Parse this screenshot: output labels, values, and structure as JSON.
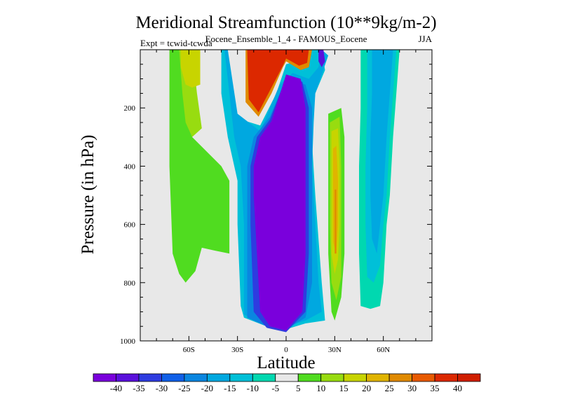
{
  "chart_data": {
    "type": "contour",
    "title": "Meridional Streamfunction (10**9kg/m-2)",
    "subtitle": "Eocene_Ensemble_1_4 - FAMOUS_Eocene",
    "left_label": "Expt = tcwid-tcwda",
    "right_label": "JJA",
    "xlabel": "Latitude",
    "ylabel": "Pressure (in hPa)",
    "xlim": [
      -90,
      90
    ],
    "ylim": [
      1000,
      0
    ],
    "x_ticks": [
      {
        "value": -60,
        "label": "60S"
      },
      {
        "value": -30,
        "label": "30S"
      },
      {
        "value": 0,
        "label": "0"
      },
      {
        "value": 30,
        "label": "30N"
      },
      {
        "value": 60,
        "label": "60N"
      }
    ],
    "y_ticks": [
      {
        "value": 200,
        "label": "200"
      },
      {
        "value": 400,
        "label": "400"
      },
      {
        "value": 600,
        "label": "600"
      },
      {
        "value": 800,
        "label": "800"
      },
      {
        "value": 1000,
        "label": "1000"
      }
    ],
    "missing_color": "#e8e8e8",
    "colorbar": {
      "labels": [
        "-40",
        "-35",
        "-30",
        "-25",
        "-20",
        "-15",
        "-10",
        "-5",
        "5",
        "10",
        "15",
        "20",
        "25",
        "30",
        "35",
        "40"
      ],
      "colors": [
        "#7a00dc",
        "#5a10dc",
        "#2e3ce0",
        "#1060e8",
        "#0a86e0",
        "#00a8e0",
        "#00c0d8",
        "#00d8b0",
        "#e8e8e8",
        "#50dc20",
        "#98dc10",
        "#c8d400",
        "#e0b400",
        "#e08a00",
        "#e85a00",
        "#dc2800",
        "#d01e00"
      ]
    },
    "regions": [
      {
        "name": "SH polar cell",
        "color": "#50dc20",
        "points": [
          [
            -72,
            0
          ],
          [
            -66,
            0
          ],
          [
            -58,
            300
          ],
          [
            -40,
            400
          ],
          [
            -35,
            450
          ],
          [
            -35,
            700
          ],
          [
            -44,
            690
          ],
          [
            -52,
            680
          ],
          [
            -56,
            760
          ],
          [
            -62,
            800
          ],
          [
            -66,
            770
          ],
          [
            -70,
            700
          ],
          [
            -72,
            400
          ]
        ]
      },
      {
        "name": "SH polar cell core",
        "color": "#98dc10",
        "points": [
          [
            -66,
            0
          ],
          [
            -58,
            0
          ],
          [
            -55,
            150
          ],
          [
            -52,
            270
          ],
          [
            -58,
            300
          ],
          [
            -62,
            250
          ],
          [
            -64,
            150
          ]
        ]
      },
      {
        "name": "SH polar cell center",
        "color": "#c8d400",
        "points": [
          [
            -65,
            0
          ],
          [
            -53,
            0
          ],
          [
            -53,
            120
          ],
          [
            -58,
            130
          ],
          [
            -62,
            120
          ],
          [
            -65,
            60
          ]
        ]
      },
      {
        "name": "Ferrel cell SH outer",
        "color": "#00c0d8",
        "points": [
          [
            -40,
            0
          ],
          [
            -38,
            0
          ],
          [
            -32,
            200
          ],
          [
            -28,
            240
          ],
          [
            -16,
            260
          ],
          [
            -6,
            150
          ],
          [
            0,
            50
          ],
          [
            6,
            40
          ],
          [
            12,
            50
          ],
          [
            14,
            0
          ],
          [
            22,
            0
          ],
          [
            24,
            70
          ],
          [
            18,
            150
          ],
          [
            17,
            200
          ],
          [
            16,
            320
          ],
          [
            18,
            500
          ],
          [
            22,
            800
          ],
          [
            24,
            930
          ],
          [
            12,
            940
          ],
          [
            0,
            960
          ],
          [
            -12,
            950
          ],
          [
            -26,
            920
          ],
          [
            -28,
            880
          ],
          [
            -30,
            600
          ],
          [
            -30,
            450
          ],
          [
            -36,
            300
          ],
          [
            -40,
            150
          ]
        ]
      },
      {
        "name": "Ferrel cell SH mid",
        "color": "#00a8e0",
        "points": [
          [
            -38,
            0
          ],
          [
            -36,
            0
          ],
          [
            -30,
            220
          ],
          [
            -16,
            280
          ],
          [
            -4,
            120
          ],
          [
            4,
            80
          ],
          [
            14,
            100
          ],
          [
            20,
            60
          ],
          [
            22,
            0
          ],
          [
            26,
            20
          ],
          [
            18,
            150
          ],
          [
            17,
            250
          ],
          [
            16,
            400
          ],
          [
            18,
            600
          ],
          [
            20,
            800
          ],
          [
            22,
            900
          ],
          [
            12,
            930
          ],
          [
            0,
            950
          ],
          [
            -12,
            940
          ],
          [
            -26,
            910
          ],
          [
            -26,
            800
          ],
          [
            -26,
            600
          ],
          [
            -28,
            400
          ],
          [
            -32,
            300
          ]
        ]
      },
      {
        "name": "Hadley cell blue",
        "color": "#0a86e0",
        "points": [
          [
            -24,
            400
          ],
          [
            -20,
            300
          ],
          [
            -10,
            230
          ],
          [
            0,
            100
          ],
          [
            12,
            120
          ],
          [
            16,
            200
          ],
          [
            16,
            400
          ],
          [
            16,
            600
          ],
          [
            16,
            800
          ],
          [
            12,
            920
          ],
          [
            0,
            960
          ],
          [
            -12,
            950
          ],
          [
            -24,
            920
          ],
          [
            -24,
            700
          ]
        ]
      },
      {
        "name": "Hadley cell indigo",
        "color": "#2e3ce0",
        "points": [
          [
            -22,
            400
          ],
          [
            -18,
            300
          ],
          [
            -10,
            240
          ],
          [
            0,
            95
          ],
          [
            10,
            110
          ],
          [
            14,
            200
          ],
          [
            14,
            400
          ],
          [
            14,
            700
          ],
          [
            12,
            900
          ],
          [
            0,
            970
          ],
          [
            -12,
            955
          ],
          [
            -20,
            900
          ],
          [
            -22,
            600
          ]
        ]
      },
      {
        "name": "Hadley cell violet core",
        "color": "#7a00dc",
        "points": [
          [
            -20,
            400
          ],
          [
            -16,
            300
          ],
          [
            -9,
            245
          ],
          [
            0,
            85
          ],
          [
            9,
            100
          ],
          [
            12,
            200
          ],
          [
            12,
            400
          ],
          [
            12,
            700
          ],
          [
            10,
            900
          ],
          [
            0,
            965
          ],
          [
            -10,
            950
          ],
          [
            -16,
            900
          ],
          [
            -18,
            700
          ],
          [
            -20,
            500
          ]
        ]
      },
      {
        "name": "Upper tropical positive edge",
        "color": "#e08a00",
        "points": [
          [
            -25,
            0
          ],
          [
            -25,
            180
          ],
          [
            -17,
            230
          ],
          [
            -9,
            150
          ],
          [
            -2,
            60
          ],
          [
            0,
            40
          ],
          [
            9,
            70
          ],
          [
            14,
            60
          ],
          [
            16,
            0
          ]
        ]
      },
      {
        "name": "Upper tropical positive core",
        "color": "#dc2800",
        "points": [
          [
            -24,
            0
          ],
          [
            -23,
            170
          ],
          [
            -17,
            215
          ],
          [
            -10,
            140
          ],
          [
            -2,
            55
          ],
          [
            0,
            30
          ],
          [
            8,
            55
          ],
          [
            13,
            45
          ],
          [
            14,
            0
          ]
        ]
      },
      {
        "name": "Upper tropical indigo",
        "color": "#5a10dc",
        "points": [
          [
            20,
            0
          ],
          [
            23,
            0
          ],
          [
            24,
            40
          ],
          [
            22,
            60
          ],
          [
            20,
            40
          ]
        ]
      },
      {
        "name": "NH cell green",
        "color": "#50dc20",
        "points": [
          [
            26,
            220
          ],
          [
            34,
            200
          ],
          [
            36,
            300
          ],
          [
            36,
            500
          ],
          [
            36,
            700
          ],
          [
            34,
            850
          ],
          [
            30,
            930
          ],
          [
            28,
            900
          ],
          [
            26,
            700
          ],
          [
            26,
            400
          ]
        ]
      },
      {
        "name": "NH cell lime",
        "color": "#98dc10",
        "points": [
          [
            27,
            250
          ],
          [
            33,
            230
          ],
          [
            34,
            400
          ],
          [
            34,
            600
          ],
          [
            34,
            780
          ],
          [
            31,
            860
          ],
          [
            28,
            800
          ],
          [
            27,
            600
          ],
          [
            27,
            400
          ]
        ]
      },
      {
        "name": "NH cell yellow",
        "color": "#c8d400",
        "points": [
          [
            28,
            280
          ],
          [
            32,
            270
          ],
          [
            33,
            400
          ],
          [
            33,
            600
          ],
          [
            32,
            720
          ],
          [
            30,
            770
          ],
          [
            28,
            700
          ],
          [
            28,
            500
          ]
        ]
      },
      {
        "name": "NH cell orange",
        "color": "#e0b400",
        "points": [
          [
            29,
            340
          ],
          [
            31,
            330
          ],
          [
            32,
            450
          ],
          [
            32,
            600
          ],
          [
            31,
            700
          ],
          [
            29,
            660
          ],
          [
            29,
            500
          ]
        ]
      },
      {
        "name": "NH cell core",
        "color": "#e08a00",
        "points": [
          [
            30,
            480
          ],
          [
            31,
            480
          ],
          [
            31,
            700
          ],
          [
            30,
            700
          ]
        ]
      },
      {
        "name": "NH polar outer",
        "color": "#00d8b0",
        "points": [
          [
            46,
            0
          ],
          [
            70,
            0
          ],
          [
            68,
            150
          ],
          [
            66,
            300
          ],
          [
            64,
            500
          ],
          [
            62,
            600
          ],
          [
            60,
            800
          ],
          [
            58,
            880
          ],
          [
            52,
            890
          ],
          [
            46,
            880
          ],
          [
            45,
            700
          ],
          [
            45,
            400
          ],
          [
            46,
            200
          ]
        ]
      },
      {
        "name": "NH polar cyan",
        "color": "#00c0d8",
        "points": [
          [
            50,
            0
          ],
          [
            68,
            0
          ],
          [
            66,
            150
          ],
          [
            64,
            300
          ],
          [
            62,
            500
          ],
          [
            60,
            600
          ],
          [
            58,
            740
          ],
          [
            54,
            800
          ],
          [
            50,
            780
          ],
          [
            49,
            600
          ],
          [
            49,
            400
          ],
          [
            50,
            200
          ]
        ]
      },
      {
        "name": "NH polar blue",
        "color": "#00a8e0",
        "points": [
          [
            53,
            0
          ],
          [
            66,
            0
          ],
          [
            64,
            150
          ],
          [
            62,
            300
          ],
          [
            60,
            500
          ],
          [
            58,
            600
          ],
          [
            56,
            700
          ],
          [
            53,
            650
          ],
          [
            52,
            500
          ],
          [
            52,
            300
          ],
          [
            53,
            150
          ]
        ]
      }
    ]
  }
}
